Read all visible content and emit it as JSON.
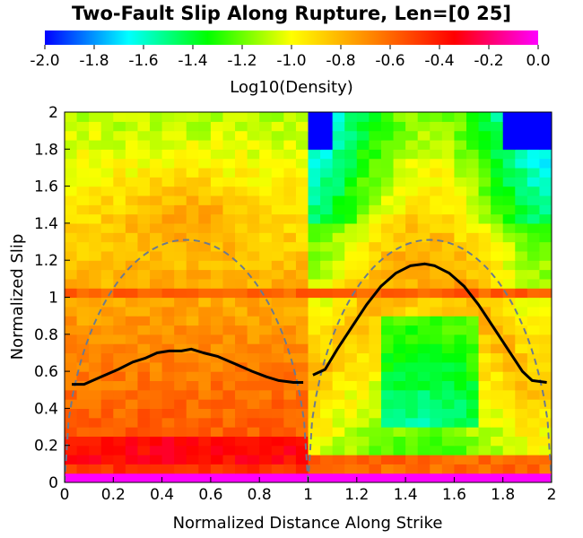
{
  "chart_data": {
    "type": "heatmap",
    "title": "Two-Fault Slip Along Rupture, Len=[0 25]",
    "xlabel": "Normalized Distance Along Strike",
    "ylabel": "Normalized Slip",
    "xlim": [
      0,
      2
    ],
    "ylim": [
      0,
      2
    ],
    "x_ticks": [
      "0",
      "0.2",
      "0.4",
      "0.6",
      "0.8",
      "1",
      "1.2",
      "1.4",
      "1.6",
      "1.8",
      "2"
    ],
    "y_ticks": [
      "0",
      "0.2",
      "0.4",
      "0.6",
      "0.8",
      "1",
      "1.2",
      "1.4",
      "1.6",
      "1.8",
      "2"
    ],
    "colorbar": {
      "label": "Log10(Density)",
      "range": [
        -2.0,
        0.0
      ],
      "ticks": [
        "-2.0",
        "-1.8",
        "-1.6",
        "-1.4",
        "-1.2",
        "-1.0",
        "-0.8",
        "-0.6",
        "-0.4",
        "-0.2",
        "0.0"
      ],
      "colormap": [
        "#0000ff",
        "#00ffff",
        "#00ff00",
        "#ffff00",
        "#ff8000",
        "#ff0000",
        "#ff00ff"
      ]
    },
    "mean_slip": [
      {
        "segment": 1,
        "x": [
          0.03,
          0.08,
          0.15,
          0.22,
          0.28,
          0.33,
          0.38,
          0.43,
          0.48,
          0.52,
          0.57,
          0.63,
          0.7,
          0.77,
          0.83,
          0.88,
          0.94,
          0.98
        ],
        "y": [
          0.53,
          0.53,
          0.57,
          0.61,
          0.65,
          0.67,
          0.7,
          0.71,
          0.71,
          0.72,
          0.7,
          0.68,
          0.64,
          0.6,
          0.57,
          0.55,
          0.54,
          0.54
        ]
      },
      {
        "segment": 2,
        "x": [
          1.02,
          1.07,
          1.12,
          1.18,
          1.24,
          1.3,
          1.36,
          1.42,
          1.48,
          1.52,
          1.58,
          1.64,
          1.7,
          1.76,
          1.82,
          1.88,
          1.92,
          1.98
        ],
        "y": [
          0.58,
          0.61,
          0.72,
          0.84,
          0.96,
          1.06,
          1.13,
          1.17,
          1.18,
          1.17,
          1.13,
          1.06,
          0.96,
          0.84,
          0.72,
          0.6,
          0.55,
          0.54
        ]
      }
    ],
    "reference_curve": {
      "style": "dashed",
      "description_shape": "half-ellipse per fault, peak",
      "peak": 1.31,
      "segments": [
        [
          0,
          1
        ],
        [
          1,
          2
        ]
      ]
    },
    "density_features": {
      "high_band_slip": 1.03,
      "low_slip_high_density": [
        0.0,
        0.25
      ],
      "zero_row_value": 0.0
    }
  }
}
